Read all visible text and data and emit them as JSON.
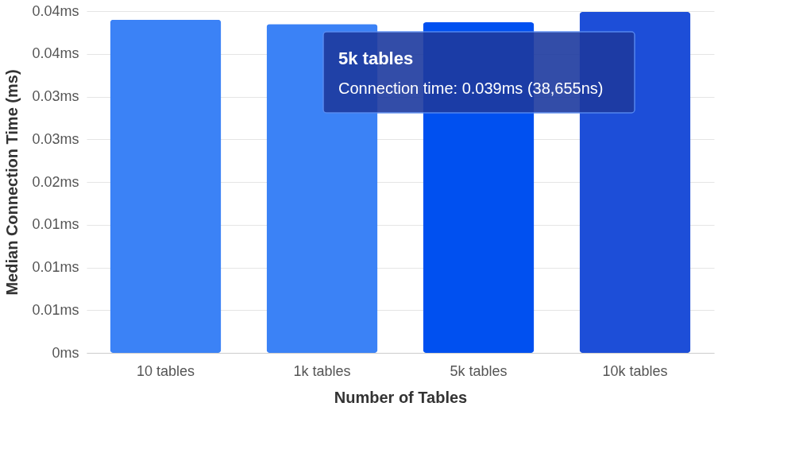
{
  "chart_data": {
    "type": "bar",
    "xlabel": "Number of Tables",
    "ylabel": "Median Connection Time (ms)",
    "categories": [
      "10 tables",
      "1k tables",
      "5k tables",
      "10k tables"
    ],
    "values": [
      0.039,
      0.0385,
      0.0387,
      0.0399
    ],
    "colors": [
      "#3b82f6",
      "#3b82f6",
      "#0050f0",
      "#1d4ed8"
    ],
    "ylim": [
      0,
      0.04
    ],
    "yticks": [
      {
        "value": 0,
        "label": "0ms"
      },
      {
        "value": 0.005,
        "label": "0.01ms"
      },
      {
        "value": 0.01,
        "label": "0.01ms"
      },
      {
        "value": 0.015,
        "label": "0.01ms"
      },
      {
        "value": 0.02,
        "label": "0.02ms"
      },
      {
        "value": 0.025,
        "label": "0.03ms"
      },
      {
        "value": 0.03,
        "label": "0.03ms"
      },
      {
        "value": 0.035,
        "label": "0.04ms"
      },
      {
        "value": 0.04,
        "label": "0.04ms"
      }
    ],
    "grid": "y",
    "annotations": [
      "5k tables",
      "Connection time: 0.039ms (38,655ns)"
    ]
  }
}
